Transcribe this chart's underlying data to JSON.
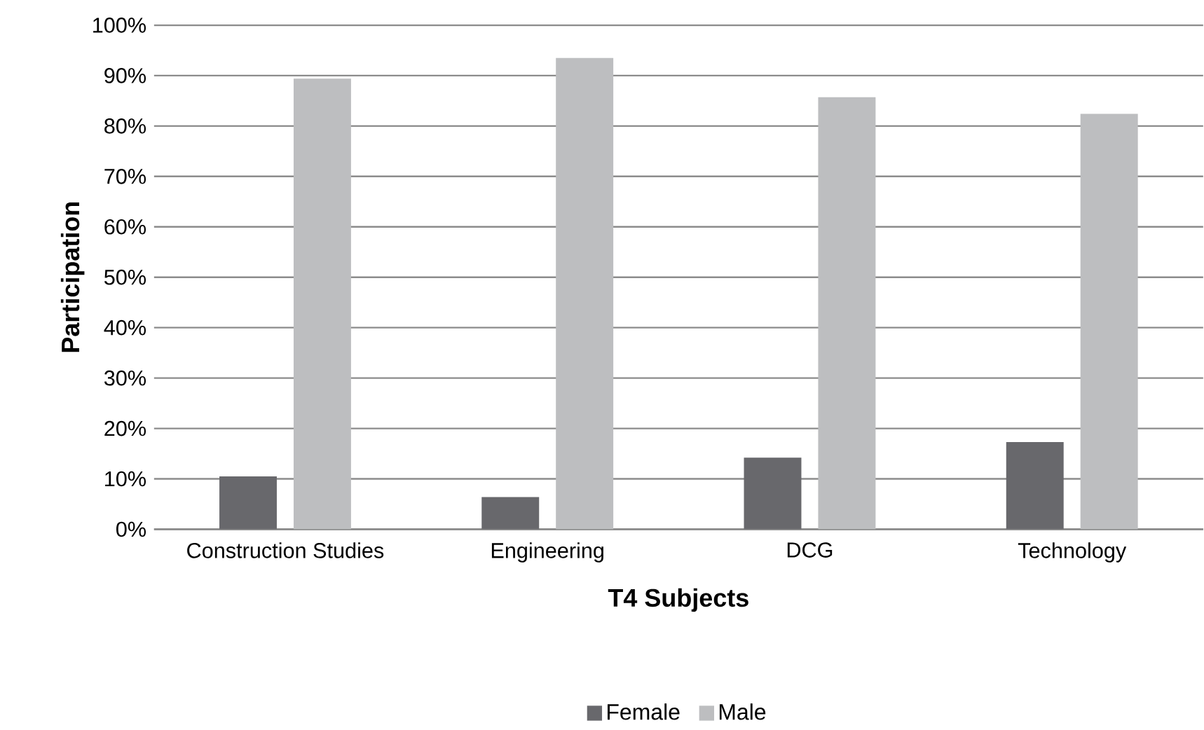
{
  "chart_data": {
    "type": "bar",
    "xlabel": "**T4 Subjects**",
    "ylabel": "**Participation**",
    "categories": [
      "Construction Studies",
      "Engineering",
      "DCG",
      "Technology"
    ],
    "series": [
      {
        "name": "Female",
        "color": "#68686c",
        "values": [
          10.5,
          6.4,
          14.2,
          17.3
        ]
      },
      {
        "name": "Male",
        "color": "#bdbec0",
        "values": [
          89.4,
          93.5,
          85.7,
          82.4
        ]
      }
    ],
    "ylim": [
      0,
      100
    ],
    "yticks": [
      {
        "value": 0,
        "label": "0%"
      },
      {
        "value": 10,
        "label": "10%"
      },
      {
        "value": 20,
        "label": "20%"
      },
      {
        "value": 30,
        "label": "30%"
      },
      {
        "value": 40,
        "label": "40%"
      },
      {
        "value": 50,
        "label": "50%"
      },
      {
        "value": 60,
        "label": "60%"
      },
      {
        "value": 70,
        "label": "70%"
      },
      {
        "value": 80,
        "label": "80%"
      },
      {
        "value": 90,
        "label": "90%"
      },
      {
        "value": 100,
        "label": "100%"
      }
    ],
    "grid": "y",
    "legend": "bottom"
  }
}
